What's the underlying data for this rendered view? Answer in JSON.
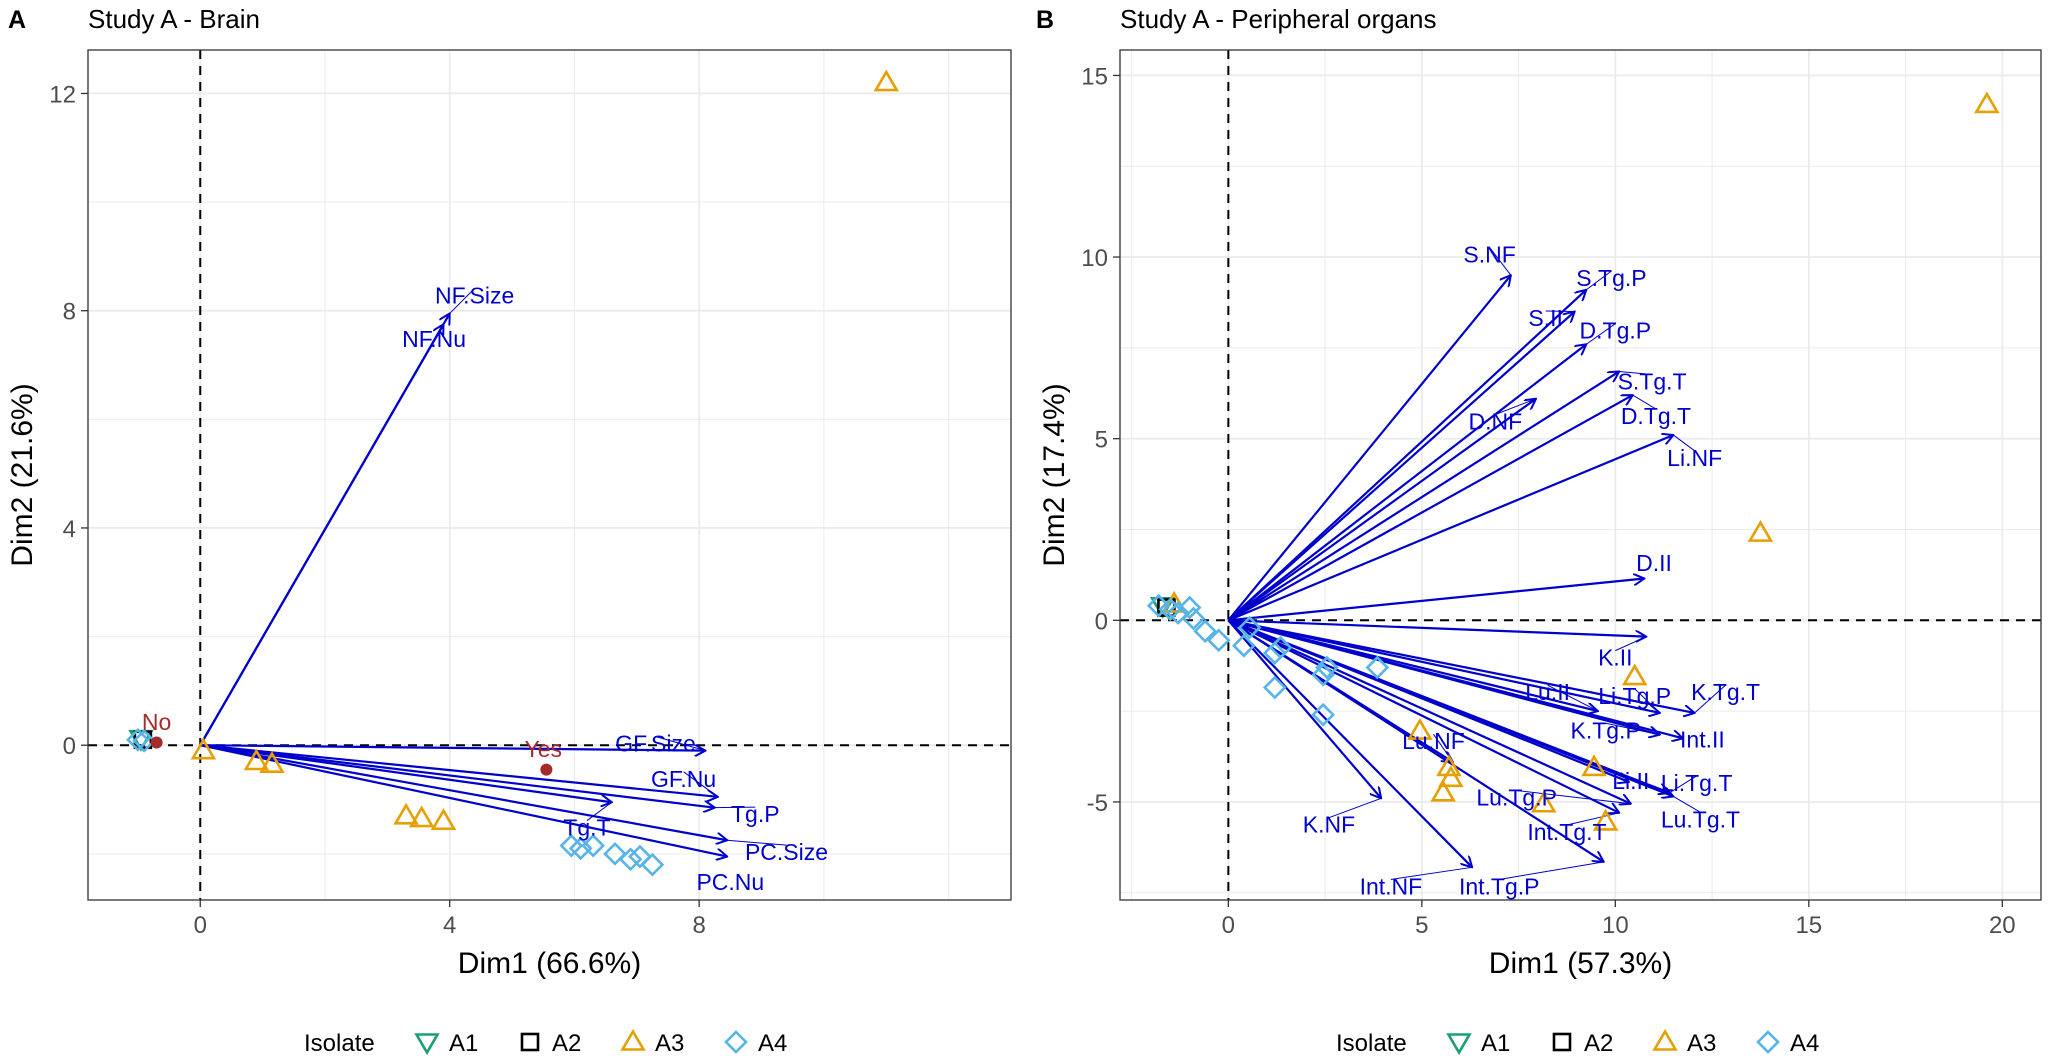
{
  "chart_data": [
    {
      "type": "scatter",
      "panel_letter": "A",
      "title": "Study A - Brain",
      "xlabel": "Dim1 (66.6%)",
      "ylabel": "Dim2 (21.6%)",
      "xlim": [
        -1.8,
        13.0
      ],
      "ylim": [
        -2.85,
        12.8
      ],
      "xticks": [
        0,
        4,
        8
      ],
      "yticks": [
        0,
        4,
        8,
        12
      ],
      "grid": true,
      "legend": "bottom",
      "points": [
        {
          "isolate": "A1",
          "x": -0.95,
          "y": 0.12
        },
        {
          "isolate": "A2",
          "x": -0.92,
          "y": 0.1
        },
        {
          "isolate": "A4",
          "x": -0.9,
          "y": 0.08
        },
        {
          "isolate": "A4",
          "x": -1.0,
          "y": 0.1
        },
        {
          "isolate": "A3",
          "x": 0.05,
          "y": -0.1
        },
        {
          "isolate": "A3",
          "x": 0.9,
          "y": -0.3
        },
        {
          "isolate": "A3",
          "x": 1.15,
          "y": -0.35
        },
        {
          "isolate": "A3",
          "x": 3.3,
          "y": -1.3
        },
        {
          "isolate": "A3",
          "x": 3.55,
          "y": -1.35
        },
        {
          "isolate": "A3",
          "x": 3.9,
          "y": -1.4
        },
        {
          "isolate": "A3",
          "x": 11.0,
          "y": 12.2
        },
        {
          "isolate": "A4",
          "x": 5.95,
          "y": -1.85
        },
        {
          "isolate": "A4",
          "x": 6.1,
          "y": -1.9
        },
        {
          "isolate": "A4",
          "x": 6.3,
          "y": -1.85
        },
        {
          "isolate": "A4",
          "x": 6.65,
          "y": -2.0
        },
        {
          "isolate": "A4",
          "x": 6.9,
          "y": -2.1
        },
        {
          "isolate": "A4",
          "x": 7.05,
          "y": -2.05
        },
        {
          "isolate": "A4",
          "x": 7.25,
          "y": -2.2
        }
      ],
      "vectors": [
        {
          "label": "NF.Size",
          "x": 4.0,
          "y": 7.95,
          "label_x": 4.4,
          "label_y": 8.3
        },
        {
          "label": "NF.Nu",
          "x": 3.9,
          "y": 7.75,
          "label_x": 3.75,
          "label_y": 7.5
        },
        {
          "label": "GF.Size",
          "x": 8.1,
          "y": -0.1,
          "label_x": 7.3,
          "label_y": 0.05
        },
        {
          "label": "GF.Nu",
          "x": 8.3,
          "y": -0.95,
          "label_x": 7.75,
          "label_y": -0.6
        },
        {
          "label": "Tg.P",
          "x": 8.25,
          "y": -1.15,
          "label_x": 8.9,
          "label_y": -1.25
        },
        {
          "label": "Tg.T",
          "x": 6.6,
          "y": -1.05,
          "label_x": 6.2,
          "label_y": -1.5
        },
        {
          "label": "PC.Size",
          "x": 8.45,
          "y": -1.75,
          "label_x": 9.4,
          "label_y": -1.95
        },
        {
          "label": "PC.Nu",
          "x": 8.45,
          "y": -2.05,
          "label_x": 8.5,
          "label_y": -2.5
        }
      ],
      "supplementary": [
        {
          "label": "No",
          "x": -0.7,
          "y": 0.05,
          "label_x": -0.7,
          "label_y": 0.45
        },
        {
          "label": "Yes",
          "x": 5.55,
          "y": -0.45,
          "label_x": 5.5,
          "label_y": -0.05
        }
      ]
    },
    {
      "type": "scatter",
      "panel_letter": "B",
      "title": "Study A - Peripheral organs",
      "xlabel": "Dim1 (57.3%)",
      "ylabel": "Dim2 (17.4%)",
      "xlim": [
        -2.8,
        21.0
      ],
      "ylim": [
        -7.7,
        15.7
      ],
      "xticks": [
        0,
        5,
        10,
        15,
        20
      ],
      "yticks": [
        -5,
        0,
        5,
        10,
        15
      ],
      "grid": true,
      "legend": "bottom",
      "points": [
        {
          "isolate": "A1",
          "x": -1.7,
          "y": 0.4
        },
        {
          "isolate": "A2",
          "x": -1.6,
          "y": 0.35
        },
        {
          "isolate": "A3",
          "x": -1.4,
          "y": 0.45
        },
        {
          "isolate": "A3",
          "x": 4.95,
          "y": -3.05
        },
        {
          "isolate": "A3",
          "x": 5.7,
          "y": -4.05
        },
        {
          "isolate": "A3",
          "x": 5.75,
          "y": -4.35
        },
        {
          "isolate": "A3",
          "x": 5.55,
          "y": -4.75
        },
        {
          "isolate": "A3",
          "x": 8.15,
          "y": -5.05
        },
        {
          "isolate": "A3",
          "x": 9.45,
          "y": -4.05
        },
        {
          "isolate": "A3",
          "x": 9.75,
          "y": -5.55
        },
        {
          "isolate": "A3",
          "x": 10.5,
          "y": -1.55
        },
        {
          "isolate": "A3",
          "x": 13.75,
          "y": 2.4
        },
        {
          "isolate": "A3",
          "x": 19.6,
          "y": 14.2
        },
        {
          "isolate": "A4",
          "x": -1.8,
          "y": 0.4
        },
        {
          "isolate": "A4",
          "x": -1.5,
          "y": 0.3
        },
        {
          "isolate": "A4",
          "x": -1.3,
          "y": 0.2
        },
        {
          "isolate": "A4",
          "x": -1.0,
          "y": 0.35
        },
        {
          "isolate": "A4",
          "x": -0.9,
          "y": 0.05
        },
        {
          "isolate": "A4",
          "x": -0.6,
          "y": -0.3
        },
        {
          "isolate": "A4",
          "x": -0.25,
          "y": -0.55
        },
        {
          "isolate": "A4",
          "x": 0.4,
          "y": -0.7
        },
        {
          "isolate": "A4",
          "x": 0.55,
          "y": -0.2
        },
        {
          "isolate": "A4",
          "x": 1.2,
          "y": -0.9
        },
        {
          "isolate": "A4",
          "x": 1.35,
          "y": -0.75
        },
        {
          "isolate": "A4",
          "x": 1.2,
          "y": -1.85
        },
        {
          "isolate": "A4",
          "x": 2.45,
          "y": -1.5
        },
        {
          "isolate": "A4",
          "x": 2.55,
          "y": -1.3
        },
        {
          "isolate": "A4",
          "x": 2.45,
          "y": -2.6
        },
        {
          "isolate": "A4",
          "x": 3.85,
          "y": -1.3
        }
      ],
      "vectors": [
        {
          "label": "S.NF",
          "x": 7.3,
          "y": 9.5,
          "label_x": 6.75,
          "label_y": 10.1
        },
        {
          "label": "S.Tg.P",
          "x": 9.25,
          "y": 9.1,
          "label_x": 9.9,
          "label_y": 9.45
        },
        {
          "label": "S.II",
          "x": 8.95,
          "y": 8.5,
          "label_x": 8.2,
          "label_y": 8.35
        },
        {
          "label": "D.Tg.P",
          "x": 9.25,
          "y": 7.6,
          "label_x": 10.0,
          "label_y": 8.0
        },
        {
          "label": "S.Tg.T",
          "x": 10.1,
          "y": 6.85,
          "label_x": 10.95,
          "label_y": 6.6
        },
        {
          "label": "D.NF",
          "x": 7.95,
          "y": 6.1,
          "label_x": 6.9,
          "label_y": 5.5
        },
        {
          "label": "D.Tg.T",
          "x": 10.45,
          "y": 6.2,
          "label_x": 11.05,
          "label_y": 5.65
        },
        {
          "label": "Li.NF",
          "x": 11.5,
          "y": 5.1,
          "label_x": 12.05,
          "label_y": 4.5
        },
        {
          "label": "D.II",
          "x": 10.75,
          "y": 1.15,
          "label_x": 11.0,
          "label_y": 1.6
        },
        {
          "label": "K.II",
          "x": 10.8,
          "y": -0.45,
          "label_x": 10.0,
          "label_y": -1.0
        },
        {
          "label": "K.Tg.T",
          "x": 12.05,
          "y": -2.55,
          "label_x": 12.85,
          "label_y": -1.95
        },
        {
          "label": "Lu.II",
          "x": 9.55,
          "y": -2.5,
          "label_x": 8.25,
          "label_y": -1.95
        },
        {
          "label": "Li.Tg.P",
          "x": 11.15,
          "y": -2.55,
          "label_x": 10.5,
          "label_y": -2.05
        },
        {
          "label": "K.Tg.P",
          "x": 11.15,
          "y": -3.15,
          "label_x": 9.75,
          "label_y": -3.0
        },
        {
          "label": "Int.II",
          "x": 11.75,
          "y": -3.25,
          "label_x": 12.25,
          "label_y": -3.25
        },
        {
          "label": "Lu.NF",
          "x": 5.8,
          "y": -3.9,
          "label_x": 5.3,
          "label_y": -3.3
        },
        {
          "label": "Li.II",
          "x": 10.35,
          "y": -4.45,
          "label_x": 10.4,
          "label_y": -4.4
        },
        {
          "label": "Li.Tg.T",
          "x": 11.4,
          "y": -4.75,
          "label_x": 12.1,
          "label_y": -4.45
        },
        {
          "label": "Lu.Tg.T",
          "x": 11.5,
          "y": -4.85,
          "label_x": 12.2,
          "label_y": -5.45
        },
        {
          "label": "Lu.Tg.P",
          "x": 10.4,
          "y": -5.05,
          "label_x": 7.45,
          "label_y": -4.85
        },
        {
          "label": "Int.Tg.T",
          "x": 10.1,
          "y": -5.3,
          "label_x": 8.75,
          "label_y": -5.8
        },
        {
          "label": "K.NF",
          "x": 3.95,
          "y": -4.9,
          "label_x": 2.6,
          "label_y": -5.6
        },
        {
          "label": "Int.NF",
          "x": 6.3,
          "y": -6.8,
          "label_x": 4.2,
          "label_y": -7.3
        },
        {
          "label": "Int.Tg.P",
          "x": 9.7,
          "y": -6.65,
          "label_x": 7.0,
          "label_y": -7.3
        }
      ]
    }
  ],
  "legend": {
    "title": "Isolate",
    "items": [
      {
        "label": "A1",
        "shape": "triangle-down",
        "color": "#1B9E77"
      },
      {
        "label": "A2",
        "shape": "square",
        "color": "#000000"
      },
      {
        "label": "A3",
        "shape": "triangle-up",
        "color": "#E69F00"
      },
      {
        "label": "A4",
        "shape": "diamond",
        "color": "#56B4E9"
      }
    ]
  },
  "colors": {
    "vector": "#0000CD",
    "supplementary": "#A52A2A",
    "axis_text": "#4D4D4D",
    "grid": "#EBEBEB"
  }
}
